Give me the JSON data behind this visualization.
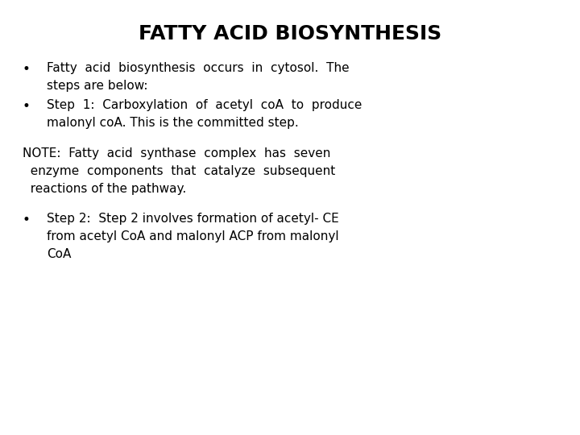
{
  "title": "FATTY ACID BIOSYNTHESIS",
  "title_fontsize": 18,
  "background_color": "#ffffff",
  "text_color": "#000000",
  "body_fontsize": 11,
  "font_family": "DejaVu Sans",
  "bullet1_line1": "Fatty  acid  biosynthesis  occurs  in  cytosol.  The",
  "bullet1_line2": "steps are below:",
  "bullet2_line1": "Step  1:  Carboxylation  of  acetyl  coA  to  produce",
  "bullet2_line2": "malonyl coA. This is the committed step.",
  "note_line1": "NOTE:  Fatty  acid  synthase  complex  has  seven",
  "note_line2": "  enzyme  components  that  catalyze  subsequent",
  "note_line3": "  reactions of the pathway.",
  "bullet3_line1": "Step 2:  Step 2 involves formation of acetyl- CE",
  "bullet3_line2": "from acetyl CoA and malonyl ACP from malonyl",
  "bullet3_line3": "CoA"
}
